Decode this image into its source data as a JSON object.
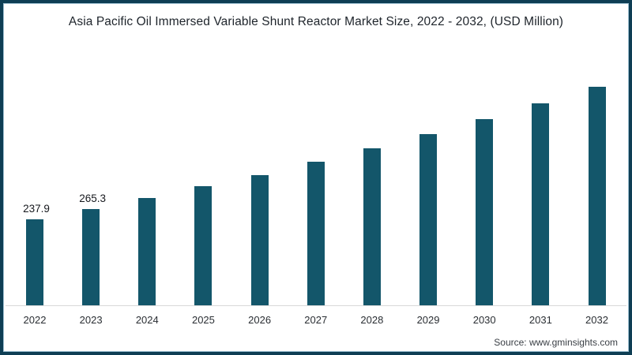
{
  "title": "Asia Pacific Oil Immersed Variable Shunt Reactor Market Size, 2022 - 2032, (USD Million)",
  "source": "Source: www.gminsights.com",
  "colors": {
    "bar": "#13566a",
    "frame_border": "#0e3e54",
    "frame_inner_line": "#9dbfd1",
    "baseline": "#d9d9d9",
    "title_text": "#1e242b",
    "data_label_text": "#16181d",
    "axis_label_text": "#2a2e33",
    "source_text": "#3a3f45",
    "background": "#ffffff"
  },
  "chart_data": {
    "type": "bar",
    "title": "Asia Pacific Oil Immersed Variable Shunt Reactor Market Size, 2022 - 2032, (USD Million)",
    "categories": [
      "2022",
      "2023",
      "2024",
      "2025",
      "2026",
      "2027",
      "2028",
      "2029",
      "2030",
      "2031",
      "2032"
    ],
    "values": [
      237.9,
      265.3,
      297.2,
      329.3,
      359.8,
      395.7,
      433.1,
      473.0,
      513.7,
      558.6,
      603.0
    ],
    "data_labels": [
      "237.9",
      "265.3",
      "",
      "",
      "",
      "",
      "",
      "",
      "",
      "",
      ""
    ],
    "xlabel": "",
    "ylabel": "",
    "ylim": [
      0,
      650
    ],
    "grid": "off",
    "legend": "none",
    "bar_color": "#13566a"
  }
}
